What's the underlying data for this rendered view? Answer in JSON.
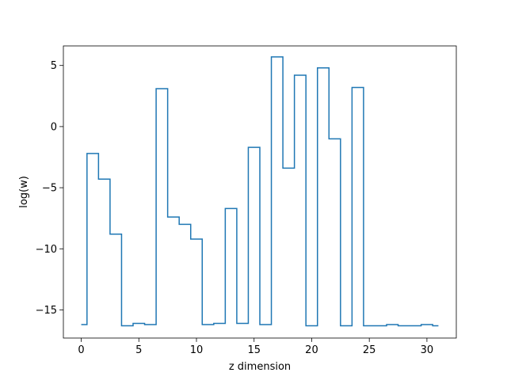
{
  "chart_data": {
    "type": "line",
    "drawstyle": "steps-mid",
    "title": "",
    "xlabel": "z dimension",
    "ylabel": "log(w)",
    "xlim": [
      -1.55,
      32.55
    ],
    "ylim": [
      -17.3,
      6.6
    ],
    "xticks": [
      0,
      5,
      10,
      15,
      20,
      25,
      30
    ],
    "xtick_labels": [
      "0",
      "5",
      "10",
      "15",
      "20",
      "25",
      "30"
    ],
    "yticks": [
      -15,
      -10,
      -5,
      0,
      5
    ],
    "ytick_labels": [
      "−15",
      "−10",
      "−5",
      "0",
      "5"
    ],
    "grid": false,
    "legend": "none",
    "series": [
      {
        "color": "#1f77b4",
        "x": [
          0,
          1,
          2,
          3,
          4,
          5,
          6,
          7,
          8,
          9,
          10,
          11,
          12,
          13,
          14,
          15,
          16,
          17,
          18,
          19,
          20,
          21,
          22,
          23,
          24,
          25,
          26,
          27,
          28,
          29,
          30,
          31
        ],
        "values": [
          -16.2,
          -2.2,
          -4.3,
          -8.8,
          -16.3,
          -16.1,
          -16.2,
          3.1,
          -7.4,
          -8.0,
          -9.2,
          -16.2,
          -16.1,
          -6.7,
          -16.1,
          -1.7,
          -16.2,
          5.7,
          -3.4,
          4.2,
          -16.3,
          4.8,
          -1.0,
          -16.3,
          3.2,
          -16.3,
          -16.3,
          -16.2,
          -16.3,
          -16.3,
          -16.2,
          -16.3
        ]
      }
    ]
  }
}
